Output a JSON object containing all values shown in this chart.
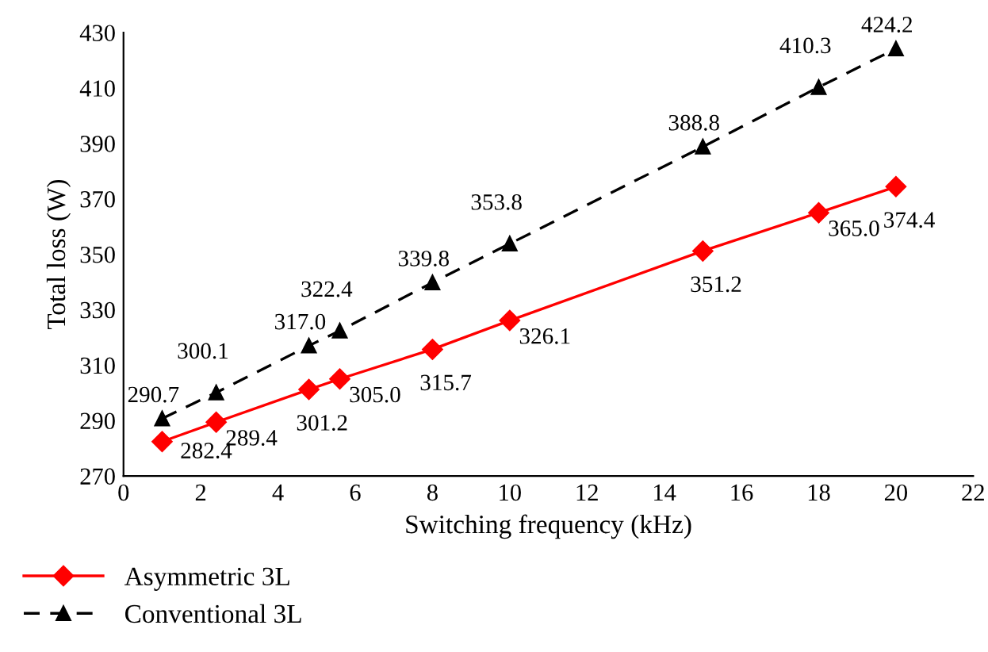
{
  "chart_data": {
    "type": "line",
    "xlabel": "Switching frequency (kHz)",
    "ylabel": "Total loss (W)",
    "x": [
      1,
      2.4,
      4.8,
      5.6,
      8,
      10,
      15,
      18,
      20
    ],
    "series": [
      {
        "name": "Asymmetric 3L",
        "color": "#ff0000",
        "marker": "diamond",
        "line_style": "solid",
        "values": [
          282.4,
          289.4,
          301.2,
          305.0,
          315.7,
          326.1,
          351.2,
          365.0,
          374.4
        ],
        "value_labels": [
          "282.4",
          "289.4",
          "301.2",
          "305.0",
          "315.7",
          "326.1",
          "351.2",
          "365.0",
          "374.4"
        ]
      },
      {
        "name": "Conventional 3L",
        "color": "#000000",
        "marker": "triangle",
        "line_style": "dashed",
        "values": [
          290.7,
          300.1,
          317.0,
          322.4,
          339.8,
          353.8,
          388.8,
          410.3,
          424.2
        ],
        "value_labels": [
          "290.7",
          "300.1",
          "317.0",
          "322.4",
          "339.8",
          "353.8",
          "388.8",
          "410.3",
          "424.2"
        ]
      }
    ],
    "xlim": [
      0,
      22
    ],
    "xticks": [
      0,
      2,
      4,
      6,
      8,
      10,
      12,
      14,
      16,
      18,
      20,
      22
    ],
    "ylim": [
      270,
      430
    ],
    "yticks": [
      270,
      290,
      310,
      330,
      350,
      370,
      390,
      410,
      430
    ],
    "grid": false,
    "legend": "bottom left"
  }
}
